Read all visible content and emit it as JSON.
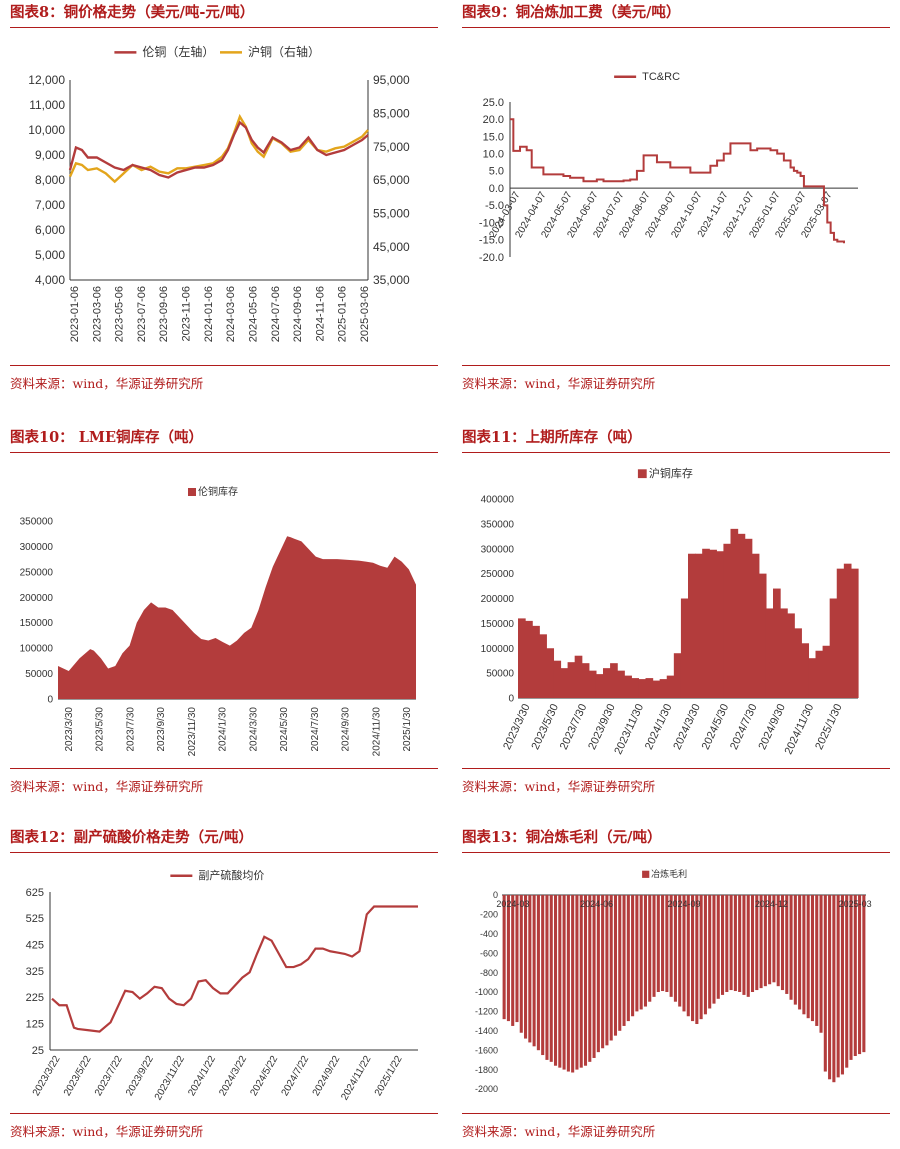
{
  "source_text": "资料来源：wind，华源证券研究所",
  "colors": {
    "accent": "#b01c1c",
    "lme": "#b33c3c",
    "shfe": "#e3a51c",
    "bar": "#b33c3c"
  },
  "charts": [
    {
      "title": "图表8：铜价格走势（美元/吨-元/吨）",
      "chart_data": {
        "type": "line",
        "title": "铜价格走势（美元/吨-元/吨）",
        "x_ticks": [
          "2023-01-06",
          "2023-03-06",
          "2023-05-06",
          "2023-07-06",
          "2023-09-06",
          "2023-11-06",
          "2024-01-06",
          "2024-03-06",
          "2024-05-06",
          "2024-07-06",
          "2024-09-06",
          "2024-11-06",
          "2025-01-06",
          "2025-03-06"
        ],
        "y_left": {
          "ticks": [
            "12,000",
            "11,000",
            "10,000",
            "9,000",
            "8,000",
            "7,000",
            "6,000",
            "5,000",
            "4,000"
          ],
          "range": [
            4000,
            12000
          ]
        },
        "y_right": {
          "ticks": [
            "95,000",
            "85,000",
            "75,000",
            "65,000",
            "55,000",
            "45,000",
            "35,000"
          ],
          "range": [
            35000,
            95000
          ]
        },
        "series": [
          {
            "name": "伦铜（左轴）",
            "axis": "left",
            "t": [
              0,
              0.02,
              0.04,
              0.06,
              0.09,
              0.12,
              0.15,
              0.18,
              0.21,
              0.24,
              0.27,
              0.3,
              0.33,
              0.36,
              0.39,
              0.42,
              0.45,
              0.48,
              0.51,
              0.53,
              0.55,
              0.57,
              0.59,
              0.61,
              0.63,
              0.65,
              0.68,
              0.71,
              0.74,
              0.77,
              0.8,
              0.83,
              0.86,
              0.89,
              0.92,
              0.95,
              0.98,
              1.0
            ],
            "values": [
              8400,
              9300,
              9200,
              8900,
              8900,
              8700,
              8500,
              8400,
              8600,
              8500,
              8400,
              8200,
              8100,
              8300,
              8400,
              8500,
              8500,
              8600,
              8800,
              9200,
              9800,
              10300,
              10100,
              9600,
              9300,
              9100,
              9700,
              9500,
              9200,
              9300,
              9700,
              9200,
              9000,
              9100,
              9200,
              9400,
              9600,
              9800
            ]
          },
          {
            "name": "沪铜（右轴）",
            "axis": "right",
            "t": [
              0,
              0.02,
              0.04,
              0.06,
              0.09,
              0.12,
              0.15,
              0.18,
              0.21,
              0.24,
              0.27,
              0.3,
              0.33,
              0.36,
              0.39,
              0.42,
              0.45,
              0.48,
              0.51,
              0.53,
              0.55,
              0.57,
              0.59,
              0.61,
              0.63,
              0.65,
              0.68,
              0.71,
              0.74,
              0.77,
              0.8,
              0.83,
              0.86,
              0.89,
              0.92,
              0.95,
              0.98,
              1.0
            ],
            "values": [
              66000,
              70000,
              69500,
              68000,
              68500,
              67000,
              64500,
              67000,
              69500,
              68000,
              69000,
              67500,
              67000,
              68500,
              68500,
              69000,
              69500,
              70000,
              72000,
              74500,
              79000,
              84000,
              81000,
              76000,
              73500,
              72000,
              77500,
              76000,
              73500,
              74000,
              77000,
              74000,
              73500,
              74500,
              75000,
              76500,
              78000,
              80000
            ]
          }
        ]
      }
    },
    {
      "title": "图表9：铜冶炼加工费（美元/吨）",
      "chart_data": {
        "type": "line",
        "title": "铜冶炼加工费（美元/吨）",
        "legend": [
          "TC&RC"
        ],
        "x_ticks": [
          "2024-03-07",
          "2024-04-07",
          "2024-05-07",
          "2024-06-07",
          "2024-07-07",
          "2024-08-07",
          "2024-09-07",
          "2024-10-07",
          "2024-11-07",
          "2024-12-07",
          "2025-01-07",
          "2025-02-07",
          "2025-03-07"
        ],
        "y_ticks": [
          "25.0",
          "20.0",
          "15.0",
          "10.0",
          "5.0",
          "0.0",
          "-5.0",
          "-10.0",
          "-15.0",
          "-20.0"
        ],
        "ylim": [
          -20,
          25
        ],
        "series": [
          {
            "name": "TC&RC",
            "t": [
              0,
              0.01,
              0.03,
              0.05,
              0.065,
              0.08,
              0.1,
              0.12,
              0.16,
              0.18,
              0.2,
              0.22,
              0.26,
              0.28,
              0.34,
              0.36,
              0.38,
              0.4,
              0.44,
              0.48,
              0.54,
              0.56,
              0.6,
              0.62,
              0.64,
              0.66,
              0.7,
              0.72,
              0.74,
              0.76,
              0.78,
              0.8,
              0.82,
              0.84,
              0.85,
              0.86,
              0.87,
              0.88,
              0.93,
              0.94,
              0.95,
              0.96,
              0.97,
              0.98,
              1.0
            ],
            "values": [
              20,
              10.8,
              12,
              11,
              6,
              6,
              4,
              4,
              3.5,
              3,
              3,
              2,
              2.5,
              2,
              2.2,
              2.5,
              5,
              9.5,
              7.5,
              6,
              4.5,
              4.5,
              6.5,
              8,
              10,
              13,
              13,
              11,
              11.5,
              11.5,
              11,
              10,
              8,
              6,
              5,
              4.5,
              3.5,
              0.5,
              0.5,
              -5,
              -10,
              -13,
              -15,
              -15.5,
              -16
            ]
          }
        ]
      }
    },
    {
      "title": "图表10： LME铜库存（吨）",
      "chart_data": {
        "type": "area",
        "title": "LME铜库存（吨）",
        "legend": [
          "伦铜库存"
        ],
        "x_ticks": [
          "2023/3/30",
          "2023/5/30",
          "2023/7/30",
          "2023/9/30",
          "2023/11/30",
          "2024/1/30",
          "2024/3/30",
          "2024/5/30",
          "2024/7/30",
          "2024/9/30",
          "2024/11/30",
          "2025/1/30"
        ],
        "y_ticks": [
          "350000",
          "300000",
          "250000",
          "200000",
          "150000",
          "100000",
          "50000",
          "0"
        ],
        "ylim": [
          0,
          350000
        ],
        "series": [
          {
            "name": "伦铜库存",
            "t": [
              0,
              0.03,
              0.06,
              0.09,
              0.1,
              0.12,
              0.14,
              0.16,
              0.18,
              0.2,
              0.22,
              0.24,
              0.26,
              0.28,
              0.3,
              0.32,
              0.34,
              0.36,
              0.38,
              0.4,
              0.42,
              0.44,
              0.46,
              0.48,
              0.5,
              0.52,
              0.54,
              0.56,
              0.58,
              0.6,
              0.62,
              0.64,
              0.65,
              0.66,
              0.68,
              0.7,
              0.72,
              0.74,
              0.76,
              0.78,
              0.8,
              0.82,
              0.84,
              0.86,
              0.88,
              0.9,
              0.92,
              0.94,
              0.96,
              0.98,
              1.0
            ],
            "values": [
              65000,
              55000,
              80000,
              98000,
              95000,
              80000,
              60000,
              65000,
              90000,
              105000,
              150000,
              175000,
              190000,
              180000,
              180000,
              175000,
              160000,
              145000,
              130000,
              118000,
              115000,
              120000,
              112000,
              105000,
              115000,
              130000,
              140000,
              175000,
              220000,
              260000,
              290000,
              320000,
              318000,
              315000,
              310000,
              295000,
              280000,
              275000,
              275000,
              275000,
              274000,
              273000,
              272000,
              270000,
              268000,
              262000,
              258000,
              280000,
              270000,
              255000,
              225000
            ]
          }
        ]
      }
    },
    {
      "title": "图表11：上期所库存（吨）",
      "chart_data": {
        "type": "bar",
        "title": "上期所库存（吨）",
        "legend": [
          "沪铜库存"
        ],
        "x_ticks": [
          "2023/3/30",
          "2023/5/30",
          "2023/7/30",
          "2023/9/30",
          "2023/11/30",
          "2024/1/30",
          "2024/3/30",
          "2024/5/30",
          "2024/7/30",
          "2024/9/30",
          "2024/11/30",
          "2025/1/30"
        ],
        "y_ticks": [
          "400000",
          "350000",
          "300000",
          "250000",
          "200000",
          "150000",
          "100000",
          "50000",
          "0"
        ],
        "ylim": [
          0,
          400000
        ],
        "values": [
          160000,
          155000,
          145000,
          128000,
          100000,
          75000,
          60000,
          72000,
          85000,
          70000,
          55000,
          48000,
          60000,
          70000,
          55000,
          45000,
          40000,
          38000,
          40000,
          35000,
          38000,
          45000,
          90000,
          200000,
          290000,
          290000,
          300000,
          298000,
          295000,
          310000,
          340000,
          330000,
          320000,
          290000,
          250000,
          180000,
          220000,
          180000,
          170000,
          140000,
          110000,
          80000,
          95000,
          105000,
          200000,
          260000,
          270000,
          260000
        ]
      }
    },
    {
      "title": "图表12：副产硫酸价格走势（元/吨）",
      "chart_data": {
        "type": "line",
        "title": "副产硫酸价格走势（元/吨）",
        "legend": [
          "副产硫酸均价"
        ],
        "x_ticks": [
          "2023/3/22",
          "2023/5/22",
          "2023/7/22",
          "2023/9/22",
          "2023/11/22",
          "2024/1/22",
          "2024/3/22",
          "2024/5/22",
          "2024/7/22",
          "2024/9/22",
          "2024/11/22",
          "2025/1/22"
        ],
        "y_ticks": [
          "625",
          "525",
          "425",
          "325",
          "225",
          "125",
          "25"
        ],
        "ylim": [
          25,
          625
        ],
        "series": [
          {
            "name": "副产硫酸均价",
            "t": [
              0,
              0.02,
              0.04,
              0.06,
              0.07,
              0.1,
              0.13,
              0.16,
              0.18,
              0.2,
              0.22,
              0.24,
              0.26,
              0.28,
              0.3,
              0.32,
              0.34,
              0.36,
              0.38,
              0.4,
              0.42,
              0.44,
              0.46,
              0.48,
              0.5,
              0.52,
              0.54,
              0.56,
              0.58,
              0.6,
              0.62,
              0.64,
              0.66,
              0.68,
              0.7,
              0.72,
              0.74,
              0.76,
              0.78,
              0.8,
              0.82,
              0.84,
              0.86,
              0.88,
              0.9,
              0.92,
              0.94,
              0.96,
              0.98,
              1.0
            ],
            "values": [
              220,
              195,
              195,
              110,
              105,
              100,
              95,
              130,
              190,
              250,
              245,
              220,
              240,
              265,
              260,
              220,
              200,
              195,
              220,
              285,
              290,
              260,
              240,
              240,
              270,
              300,
              320,
              390,
              455,
              440,
              390,
              340,
              340,
              350,
              370,
              410,
              410,
              400,
              395,
              390,
              380,
              400,
              540,
              570,
              570,
              570,
              570,
              570,
              570,
              570
            ]
          }
        ]
      }
    },
    {
      "title": "图表13：铜冶炼毛利（元/吨）",
      "chart_data": {
        "type": "bar",
        "title": "铜冶炼毛利（元/吨）",
        "legend": [
          "冶炼毛利"
        ],
        "x_ticks": [
          "2024-03",
          "2024-06",
          "2024-09",
          "2024-12",
          "2025-03"
        ],
        "y_ticks": [
          "0",
          "-200",
          "-400",
          "-600",
          "-800",
          "-1000",
          "-1200",
          "-1400",
          "-1600",
          "-1800",
          "-2000"
        ],
        "ylim": [
          -2000,
          0
        ],
        "values": [
          -1280,
          -1300,
          -1350,
          -1310,
          -1420,
          -1480,
          -1520,
          -1560,
          -1600,
          -1650,
          -1700,
          -1720,
          -1760,
          -1780,
          -1800,
          -1820,
          -1830,
          -1800,
          -1780,
          -1760,
          -1720,
          -1680,
          -1620,
          -1580,
          -1550,
          -1500,
          -1450,
          -1400,
          -1350,
          -1300,
          -1250,
          -1200,
          -1180,
          -1150,
          -1100,
          -1050,
          -1000,
          -990,
          -1000,
          -1050,
          -1100,
          -1150,
          -1200,
          -1250,
          -1300,
          -1330,
          -1280,
          -1230,
          -1170,
          -1120,
          -1070,
          -1030,
          -1000,
          -980,
          -990,
          -1000,
          -1030,
          -1050,
          -1000,
          -980,
          -960,
          -940,
          -920,
          -900,
          -940,
          -980,
          -1020,
          -1080,
          -1130,
          -1180,
          -1230,
          -1270,
          -1300,
          -1350,
          -1420,
          -1820,
          -1900,
          -1930,
          -1880,
          -1850,
          -1780,
          -1700,
          -1660,
          -1640,
          -1620
        ]
      }
    }
  ]
}
